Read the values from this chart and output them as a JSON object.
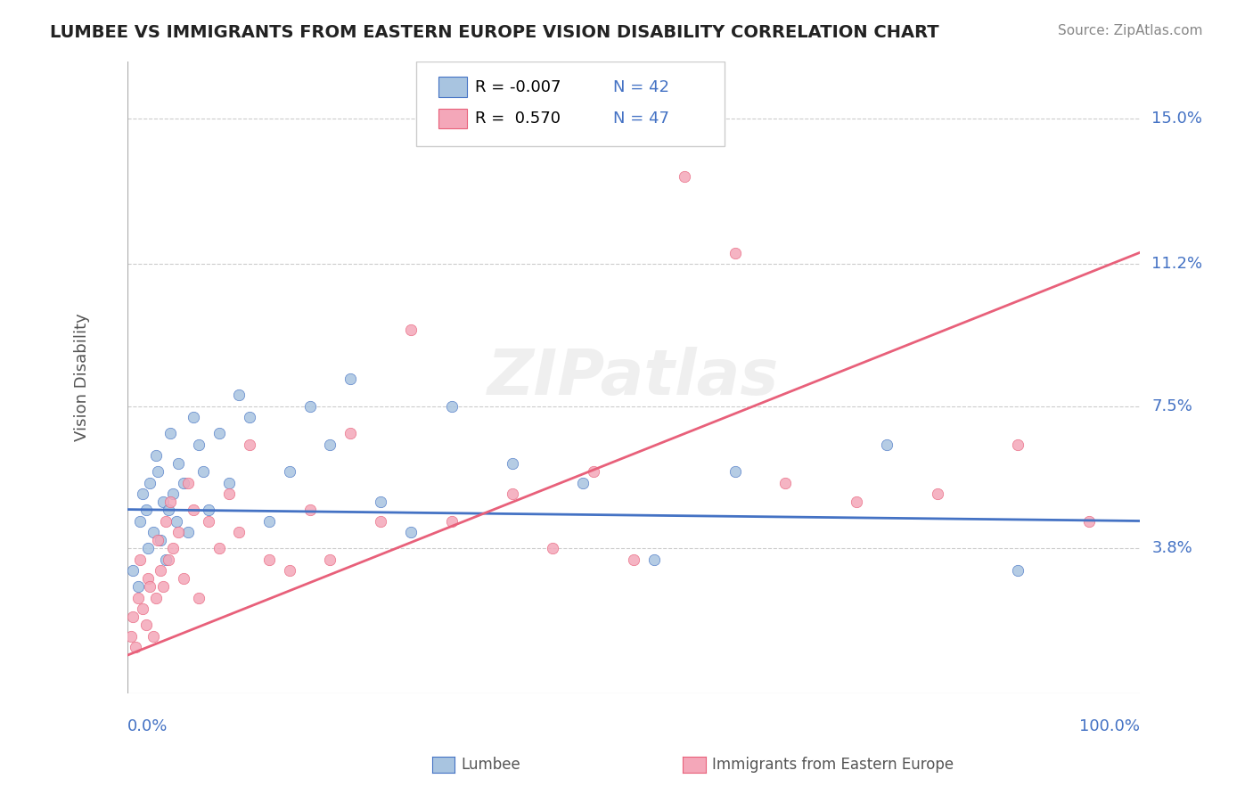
{
  "title": "LUMBEE VS IMMIGRANTS FROM EASTERN EUROPE VISION DISABILITY CORRELATION CHART",
  "source": "Source: ZipAtlas.com",
  "xlabel": "",
  "ylabel": "Vision Disability",
  "xlim": [
    0,
    100
  ],
  "ylim": [
    0,
    16.5
  ],
  "yticks": [
    3.8,
    7.5,
    11.2,
    15.0
  ],
  "xticks": [
    0,
    100
  ],
  "xtick_labels": [
    "0.0%",
    "100.0%"
  ],
  "background_color": "#ffffff",
  "grid_color": "#cccccc",
  "watermark": "ZIPatlas",
  "series": [
    {
      "name": "Lumbee",
      "R": -0.007,
      "N": 42,
      "color": "#a8c4e0",
      "line_color": "#4472c4",
      "x": [
        0.5,
        1.0,
        1.2,
        1.5,
        1.8,
        2.0,
        2.2,
        2.5,
        2.8,
        3.0,
        3.2,
        3.5,
        3.8,
        4.0,
        4.2,
        4.5,
        4.8,
        5.0,
        5.5,
        6.0,
        6.5,
        7.0,
        7.5,
        8.0,
        9.0,
        10.0,
        11.0,
        12.0,
        14.0,
        16.0,
        18.0,
        20.0,
        22.0,
        25.0,
        28.0,
        32.0,
        38.0,
        45.0,
        52.0,
        60.0,
        75.0,
        88.0
      ],
      "y": [
        3.2,
        2.8,
        4.5,
        5.2,
        4.8,
        3.8,
        5.5,
        4.2,
        6.2,
        5.8,
        4.0,
        5.0,
        3.5,
        4.8,
        6.8,
        5.2,
        4.5,
        6.0,
        5.5,
        4.2,
        7.2,
        6.5,
        5.8,
        4.8,
        6.8,
        5.5,
        7.8,
        7.2,
        4.5,
        5.8,
        7.5,
        6.5,
        8.2,
        5.0,
        4.2,
        7.5,
        6.0,
        5.5,
        3.5,
        5.8,
        6.5,
        3.2
      ],
      "trendline_x": [
        0,
        100
      ],
      "trendline_y": [
        4.8,
        4.5
      ]
    },
    {
      "name": "Immigrants from Eastern Europe",
      "R": 0.57,
      "N": 47,
      "color": "#f4a7b9",
      "line_color": "#e8607a",
      "x": [
        0.3,
        0.5,
        0.8,
        1.0,
        1.2,
        1.5,
        1.8,
        2.0,
        2.2,
        2.5,
        2.8,
        3.0,
        3.2,
        3.5,
        3.8,
        4.0,
        4.2,
        4.5,
        5.0,
        5.5,
        6.0,
        6.5,
        7.0,
        8.0,
        9.0,
        10.0,
        11.0,
        12.0,
        14.0,
        16.0,
        18.0,
        20.0,
        22.0,
        25.0,
        28.0,
        32.0,
        38.0,
        42.0,
        46.0,
        50.0,
        55.0,
        60.0,
        65.0,
        72.0,
        80.0,
        88.0,
        95.0
      ],
      "y": [
        1.5,
        2.0,
        1.2,
        2.5,
        3.5,
        2.2,
        1.8,
        3.0,
        2.8,
        1.5,
        2.5,
        4.0,
        3.2,
        2.8,
        4.5,
        3.5,
        5.0,
        3.8,
        4.2,
        3.0,
        5.5,
        4.8,
        2.5,
        4.5,
        3.8,
        5.2,
        4.2,
        6.5,
        3.5,
        3.2,
        4.8,
        3.5,
        6.8,
        4.5,
        9.5,
        4.5,
        5.2,
        3.8,
        5.8,
        3.5,
        13.5,
        11.5,
        5.5,
        5.0,
        5.2,
        6.5,
        4.5
      ],
      "trendline_x": [
        0,
        100
      ],
      "trendline_y": [
        1.0,
        11.5
      ]
    }
  ],
  "title_color": "#222222",
  "axis_color": "#4472c4",
  "n_value_color": "#4472c4"
}
